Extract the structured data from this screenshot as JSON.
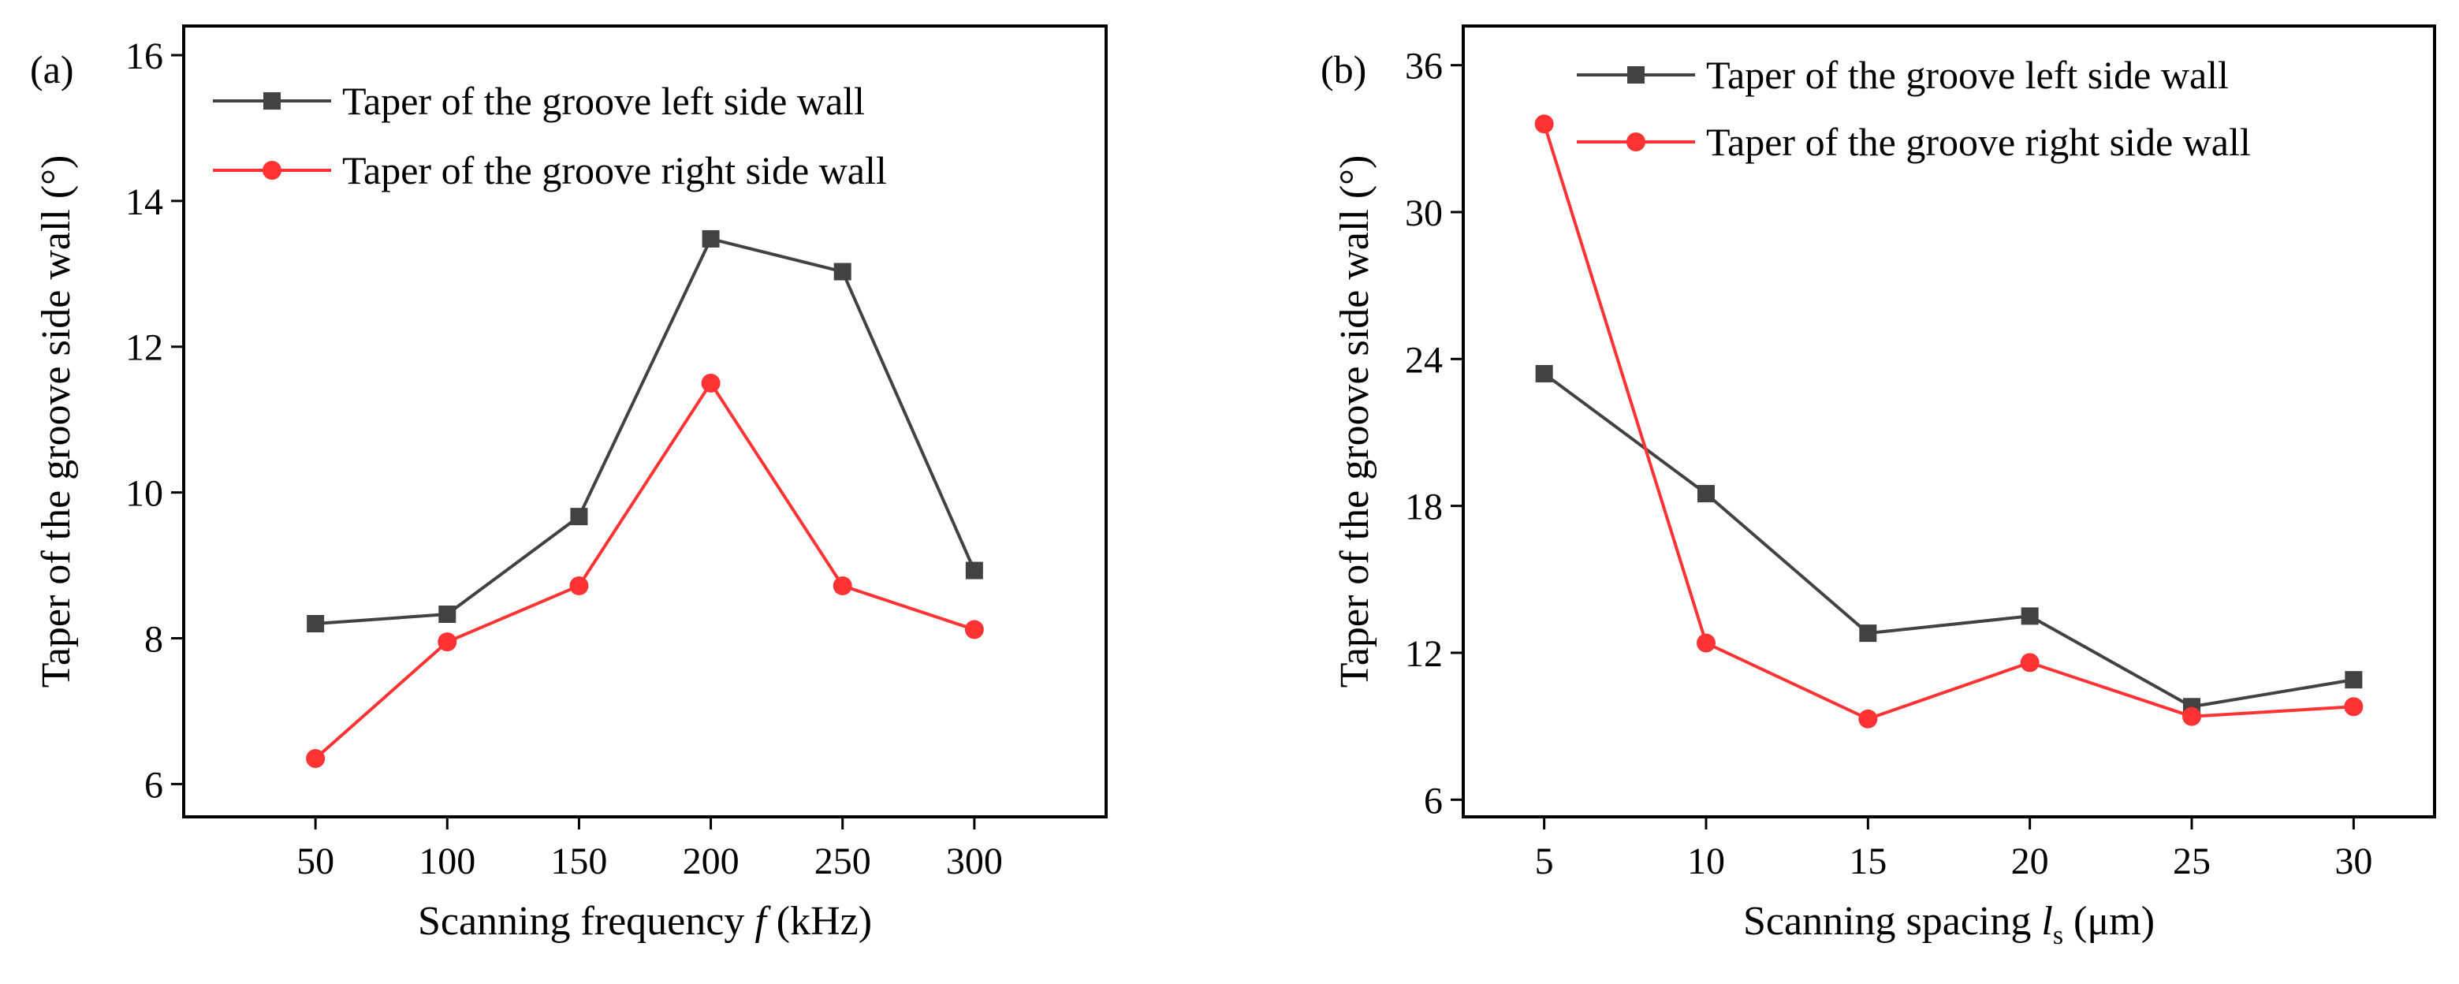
{
  "colors": {
    "series_left": "#424242",
    "series_right": "#ff3333",
    "axis": "#000000"
  },
  "chart_data": [
    {
      "type": "line",
      "panel_label": "(a)",
      "title": "",
      "xlabel": {
        "text": "Scanning frequency ",
        "italic": "f",
        "rest": " (kHz)"
      },
      "ylabel": "Taper of the groove side wall (°)",
      "x": [
        50,
        100,
        150,
        200,
        250,
        300
      ],
      "x_ticks": [
        "50",
        "100",
        "150",
        "200",
        "250",
        "300"
      ],
      "xlim": [
        0,
        350
      ],
      "ylim": [
        5.55,
        16.4
      ],
      "y_ticks": [
        6,
        8,
        10,
        12,
        14,
        16
      ],
      "y_tick_labels": [
        "6",
        "8",
        "10",
        "12",
        "14",
        "16"
      ],
      "legend_position": "top-left",
      "series": [
        {
          "name": "Taper of the groove left side wall",
          "marker": "square",
          "color": "#424242",
          "values": [
            8.2,
            8.33,
            9.67,
            13.48,
            13.03,
            8.93
          ]
        },
        {
          "name": "Taper of the groove right side wall",
          "marker": "circle",
          "color": "#ff3333",
          "values": [
            6.35,
            7.95,
            8.72,
            11.5,
            8.72,
            8.12
          ]
        }
      ]
    },
    {
      "type": "line",
      "panel_label": "(b)",
      "title": "",
      "xlabel": {
        "text": "Scanning spacing ",
        "italic": "l",
        "sub": "s",
        "rest": " (μm)"
      },
      "ylabel": "Taper of the groove side wall (°)",
      "x": [
        5,
        10,
        15,
        20,
        25,
        30
      ],
      "x_ticks": [
        "5",
        "10",
        "15",
        "20",
        "25",
        "30"
      ],
      "xlim": [
        2.5,
        32.5
      ],
      "ylim": [
        5.3,
        37.6
      ],
      "y_ticks": [
        6,
        12,
        18,
        24,
        30,
        36
      ],
      "y_tick_labels": [
        "6",
        "12",
        "18",
        "24",
        "30",
        "36"
      ],
      "legend_position": "top-right",
      "series": [
        {
          "name": "Taper of the groove left side wall",
          "marker": "square",
          "color": "#424242",
          "values": [
            23.4,
            18.5,
            12.8,
            13.5,
            9.8,
            10.9
          ]
        },
        {
          "name": "Taper of the groove right side wall",
          "marker": "circle",
          "color": "#ff3333",
          "values": [
            33.6,
            12.4,
            9.3,
            11.6,
            9.4,
            9.8
          ]
        }
      ]
    }
  ]
}
